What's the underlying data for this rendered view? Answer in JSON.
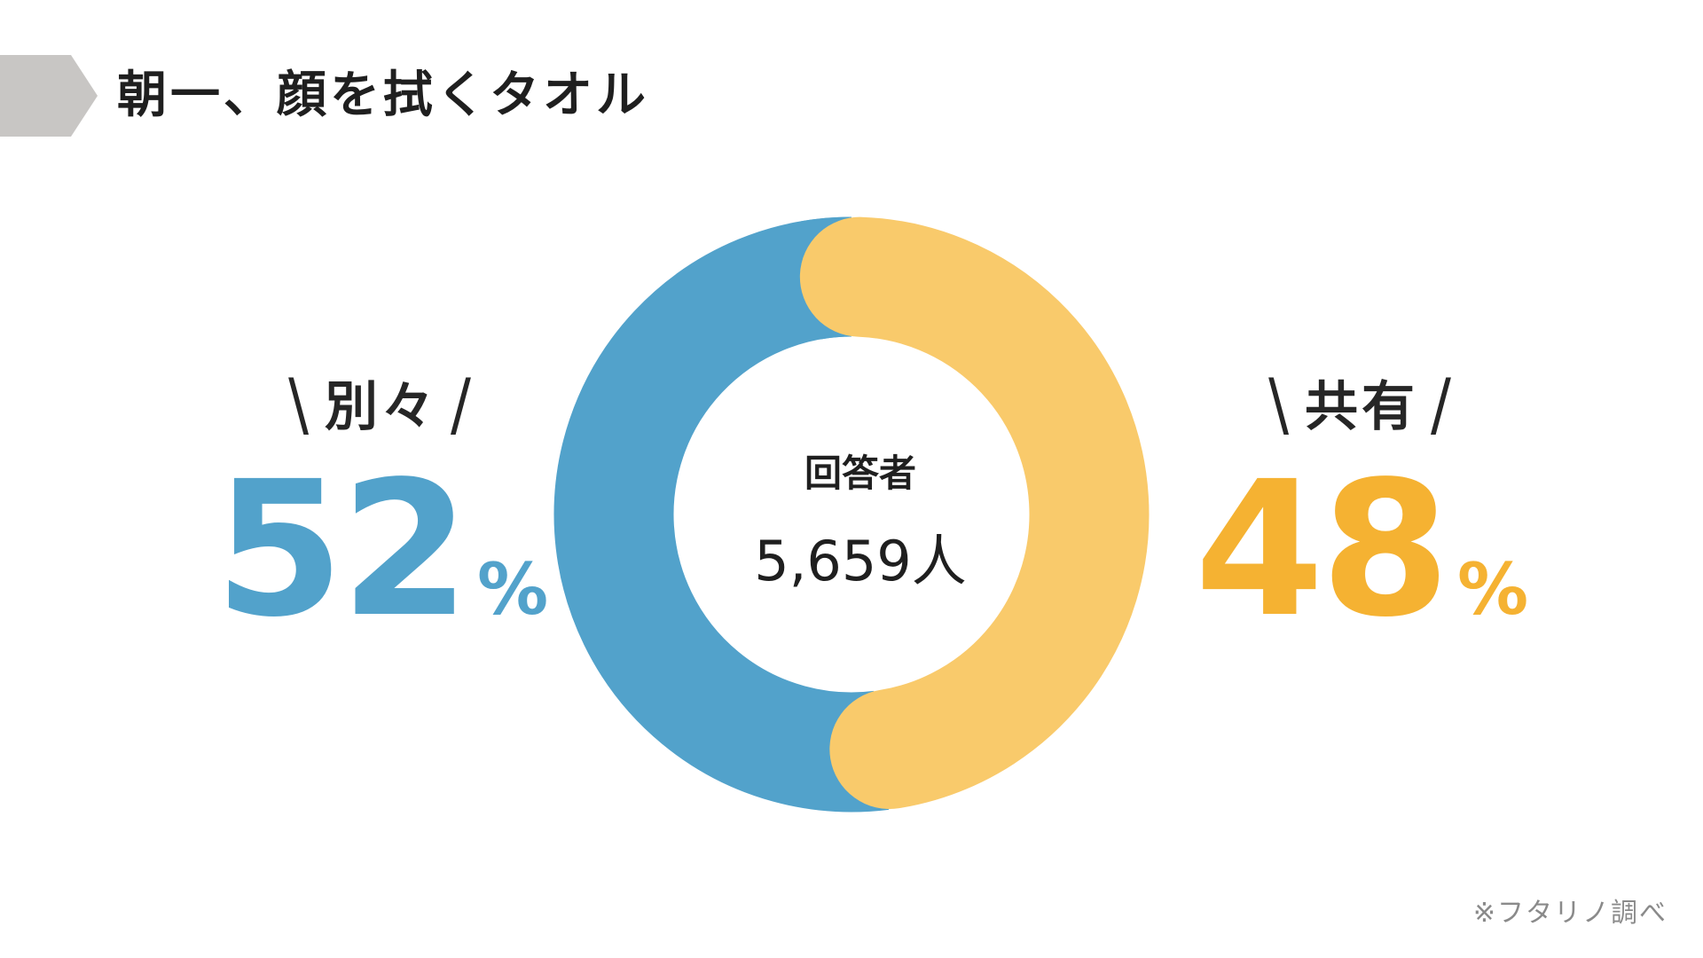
{
  "header": {
    "title": "朝一、顔を拭くタオル"
  },
  "chart_data": {
    "type": "pie",
    "categories": [
      "別々",
      "共有"
    ],
    "values": [
      52,
      48
    ],
    "unit": "%",
    "colors": [
      "#52a2cb",
      "#f9ca6b"
    ],
    "center_caption": "回答者",
    "center_count": "5,659人"
  },
  "labels": {
    "left": {
      "label": "別々",
      "value": "52",
      "unit": "%",
      "color": "#52a2cb"
    },
    "right": {
      "label": "共有",
      "value": "48",
      "unit": "%",
      "color": "#f5b232"
    },
    "slash_open": "\\",
    "slash_close": "/"
  },
  "footnote": "※フタリノ調べ",
  "colors": {
    "title_marker": "#c8c6c4",
    "text": "#1f1f1f"
  }
}
